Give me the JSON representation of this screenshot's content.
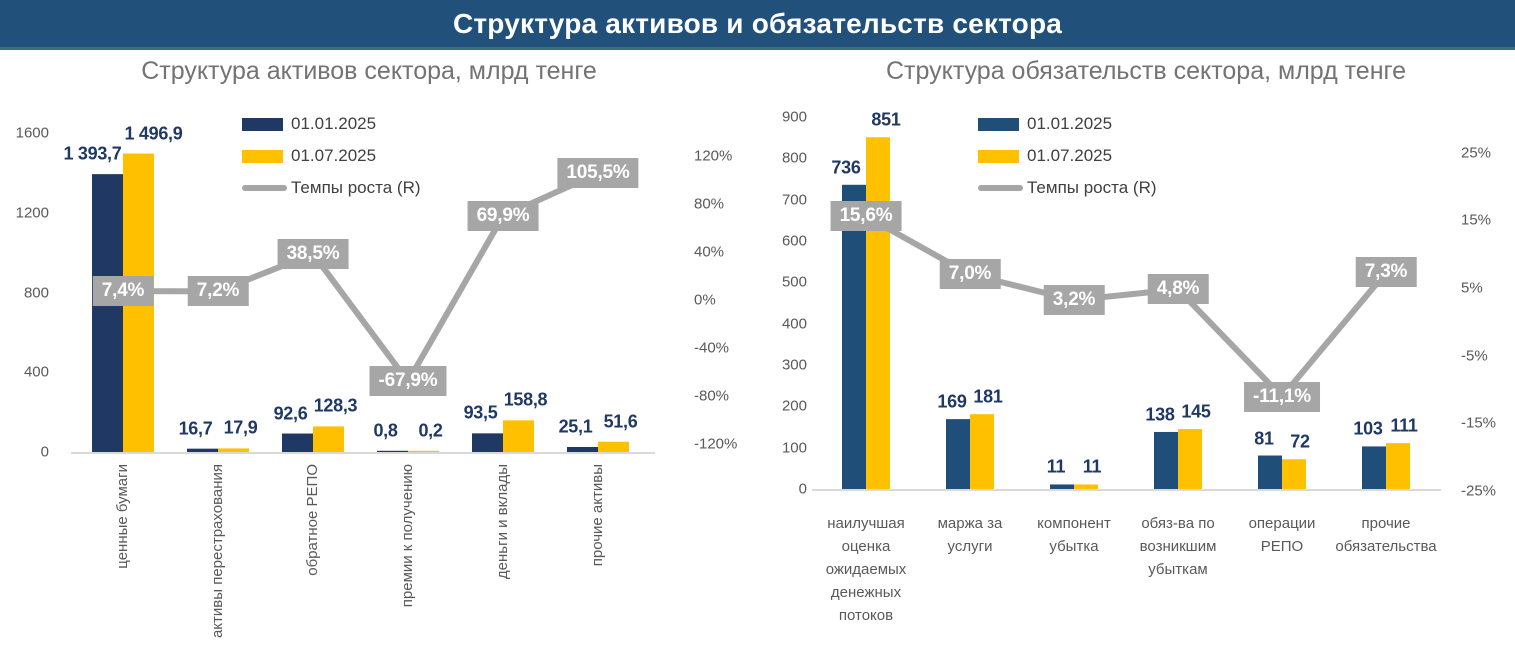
{
  "header": {
    "title": "Структура активов и обязательств сектора"
  },
  "colors": {
    "header_bg": "#21507a",
    "header_underline": "#3c6f7e",
    "navy_left": "#1f3864",
    "navy_right": "#1f4e79",
    "yellow": "#ffc000",
    "gray_line": "#a6a6a6",
    "growth_label_bg": "#a6a6a6",
    "value_label": "#1f3864",
    "axis_text": "#595959",
    "title_text": "#737373",
    "baseline": "#d9d9d9"
  },
  "chart_data": [
    {
      "type": "combo-bar-line",
      "title": "Структура активов сектора, млрд тенге",
      "legend_position": "top-center",
      "grid": false,
      "categories": [
        "ценные бумаги",
        "активы перестрахования",
        "обратное РЕПО",
        "премии к получению",
        "деньги и вклады",
        "прочие активы"
      ],
      "category_orientation": "vertical",
      "series": [
        {
          "name": "01.01.2025",
          "color_key": "navy_left",
          "values": [
            1393.7,
            16.7,
            92.6,
            0.8,
            93.5,
            25.1
          ],
          "labels": [
            "1 393,7",
            "16,7",
            "92,6",
            "0,8",
            "93,5",
            "25,1"
          ]
        },
        {
          "name": "01.07.2025",
          "color_key": "yellow",
          "values": [
            1496.9,
            17.9,
            128.3,
            0.2,
            158.8,
            51.6
          ],
          "labels": [
            "1 496,9",
            "17,9",
            "128,3",
            "0,2",
            "158,8",
            "51,6"
          ]
        }
      ],
      "line_series": {
        "name": "Темпы роста (R)",
        "values": [
          7.4,
          7.2,
          38.5,
          -67.9,
          69.9,
          105.5
        ],
        "labels": [
          "7,4%",
          "7,2%",
          "38,5%",
          "-67,9%",
          "69,9%",
          "105,5%"
        ]
      },
      "value_axis": {
        "min": 0,
        "max": 1600,
        "ticks": [
          0,
          400,
          800,
          1200,
          1600
        ],
        "labels": [
          "0",
          "400",
          "800",
          "1200",
          "1600"
        ]
      },
      "pct_axis": {
        "min": -120,
        "max": 120,
        "ticks": [
          120,
          80,
          40,
          0,
          -40,
          -80,
          -120
        ],
        "labels": [
          "120%",
          "80%",
          "40%",
          "0%",
          "-40%",
          "-80%",
          "-120%"
        ]
      }
    },
    {
      "type": "combo-bar-line",
      "title": "Структура обязательств сектора, млрд тенге",
      "legend_position": "top-center",
      "grid": false,
      "categories": [
        "наилучшая оценка ожидаемых денежных потоков",
        "маржа за услуги",
        "компонент убытка",
        "обяз-ва по возникшим убыткам",
        "операции РЕПО",
        "прочие обязательства"
      ],
      "category_orientation": "horizontal-wrapped",
      "category_lines": [
        [
          "наилучшая",
          "оценка",
          "ожидаемых",
          "денежных",
          "потоков"
        ],
        [
          "маржа за",
          "услуги"
        ],
        [
          "компонент",
          "убытка"
        ],
        [
          "обяз-ва по",
          "возникшим",
          "убыткам"
        ],
        [
          "операции",
          "РЕПО"
        ],
        [
          "прочие",
          "обязательства"
        ]
      ],
      "series": [
        {
          "name": "01.01.2025",
          "color_key": "navy_right",
          "values": [
            736,
            169,
            11,
            138,
            81,
            103
          ],
          "labels": [
            "736",
            "169",
            "11",
            "138",
            "81",
            "103"
          ]
        },
        {
          "name": "01.07.2025",
          "color_key": "yellow",
          "values": [
            851,
            181,
            11,
            145,
            72,
            111
          ],
          "labels": [
            "851",
            "181",
            "11",
            "145",
            "72",
            "111"
          ]
        }
      ],
      "line_series": {
        "name": "Темпы роста (R)",
        "values": [
          15.6,
          7.0,
          3.2,
          4.8,
          -11.1,
          7.3
        ],
        "labels": [
          "15,6%",
          "7,0%",
          "3,2%",
          "4,8%",
          "-11,1%",
          "7,3%"
        ]
      },
      "value_axis": {
        "min": 0,
        "max": 900,
        "ticks": [
          0,
          100,
          200,
          300,
          400,
          500,
          600,
          700,
          800,
          900
        ],
        "labels": [
          "0",
          "100",
          "200",
          "300",
          "400",
          "500",
          "600",
          "700",
          "800",
          "900"
        ]
      },
      "pct_axis": {
        "min": -25,
        "max": 25,
        "ticks": [
          25,
          15,
          5,
          -5,
          -15,
          -25
        ],
        "labels": [
          "25%",
          "15%",
          "5%",
          "-5%",
          "-15%",
          "-25%"
        ]
      }
    }
  ]
}
